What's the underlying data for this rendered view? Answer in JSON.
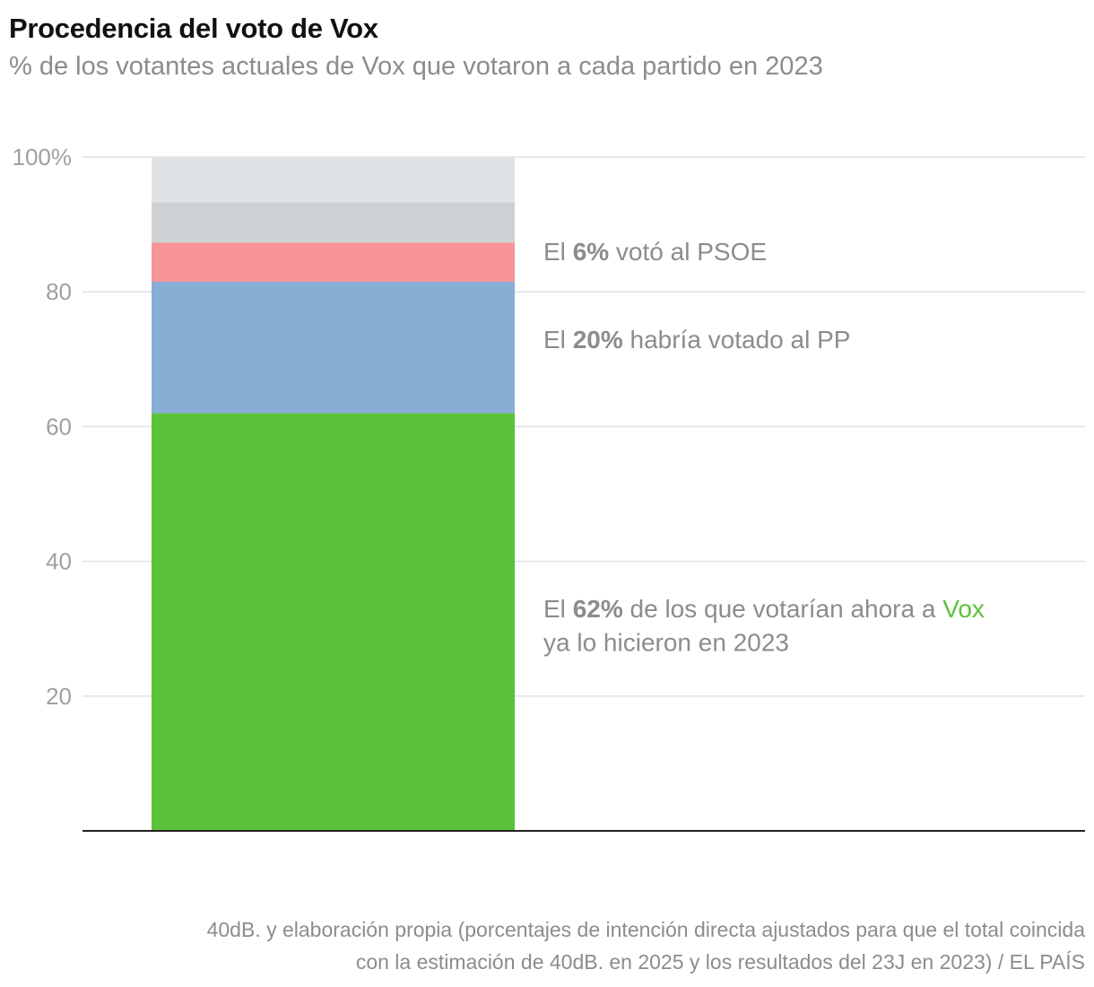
{
  "header": {
    "title": "Procedencia del voto de Vox",
    "subtitle": "% de los votantes actuales de Vox que votaron a cada partido en 2023"
  },
  "source": {
    "line1": "40dB. y elaboración propia (porcentajes de intención directa ajustados para que el total coincida",
    "line2": "con la estimación de 40dB. en 2025 y los resultados del 23J en 2023) / EL PAÍS"
  },
  "chart_data": {
    "type": "bar",
    "stacked": true,
    "ylim": [
      0,
      100
    ],
    "yticks": [
      20,
      40,
      60,
      80,
      100
    ],
    "ytick_labels": [
      "20",
      "40",
      "60",
      "80",
      "100%"
    ],
    "grid": true,
    "categories": [
      ""
    ],
    "series": [
      {
        "values": [
          62
        ],
        "color": "#5bc13a"
      },
      {
        "values": [
          19.5
        ],
        "color": "#88aed6"
      },
      {
        "values": [
          5.8
        ],
        "color": "#f79497"
      },
      {
        "values": [
          6
        ],
        "color": "#cdd1d3"
      },
      {
        "values": [
          6.7
        ],
        "color": "#e0e3e6"
      }
    ],
    "annotations": [
      {
        "value": 86,
        "parts": [
          {
            "text": "El ",
            "bold": false
          },
          {
            "text": "6%",
            "bold": true
          },
          {
            "text": " votó al PSOE",
            "bold": false
          }
        ]
      },
      {
        "value": 73,
        "parts": [
          {
            "text": "El ",
            "bold": false
          },
          {
            "text": "20%",
            "bold": true
          },
          {
            "text": " habría votado al PP",
            "bold": false
          }
        ]
      },
      {
        "value": 33,
        "parts": [
          {
            "text": "El ",
            "bold": false
          },
          {
            "text": "62%",
            "bold": true
          },
          {
            "text": " de los que votarían ahora a ",
            "bold": false
          },
          {
            "text": "Vox",
            "bold": false,
            "color": "#5bc13a"
          }
        ]
      },
      {
        "value": 28,
        "parts": [
          {
            "text": "ya lo hicieron en 2023",
            "bold": false
          }
        ]
      }
    ]
  }
}
